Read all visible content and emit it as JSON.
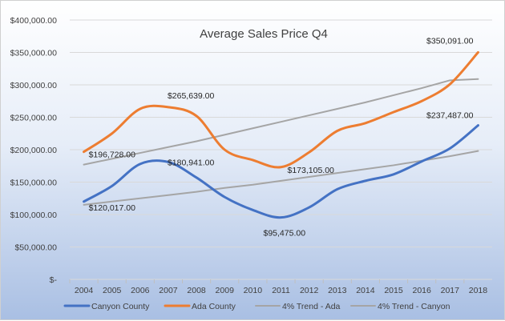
{
  "chart_data": {
    "type": "line",
    "title": "Average Sales Price Q4",
    "xlabel": "",
    "ylabel": "",
    "categories": [
      "2004",
      "2005",
      "2006",
      "2007",
      "2008",
      "2009",
      "2010",
      "2011",
      "2012",
      "2013",
      "2014",
      "2015",
      "2016",
      "2017",
      "2018"
    ],
    "ylim": [
      0,
      400000
    ],
    "y_ticks": [
      0,
      50000,
      100000,
      150000,
      200000,
      250000,
      300000,
      350000,
      400000
    ],
    "y_tick_labels": [
      "$-",
      "$50,000.00",
      "$100,000.00",
      "$150,000.00",
      "$200,000.00",
      "$250,000.00",
      "$300,000.00",
      "$350,000.00",
      "$400,000.00"
    ],
    "grid": true,
    "legend_position": "bottom",
    "series": [
      {
        "name": "Canyon County",
        "color": "#4472c4",
        "width": 3,
        "smooth": true,
        "values": [
          120017,
          144000,
          178000,
          180941,
          157000,
          127000,
          107000,
          95475,
          111000,
          139000,
          152000,
          162000,
          182000,
          202000,
          237487
        ]
      },
      {
        "name": "Ada County",
        "color": "#ed7d31",
        "width": 3,
        "smooth": true,
        "values": [
          196728,
          225000,
          263000,
          265639,
          252000,
          200000,
          184000,
          173105,
          196000,
          229000,
          241000,
          258000,
          275000,
          301000,
          350091
        ]
      },
      {
        "name": "4% Trend - Ada",
        "color": "#a5a5a5",
        "width": 2,
        "smooth": false,
        "values": [
          177000,
          186000,
          195000,
          204000,
          213000,
          223000,
          233000,
          243000,
          253000,
          263000,
          273000,
          284000,
          295000,
          307000,
          309000
        ]
      },
      {
        "name": "4% Trend - Canyon",
        "color": "#a5a5a5",
        "width": 2,
        "smooth": false,
        "values": [
          115000,
          120000,
          125000,
          130000,
          135000,
          141000,
          146000,
          152000,
          158000,
          164000,
          170000,
          176000,
          183000,
          190000,
          198000
        ]
      }
    ],
    "annotations": [
      {
        "series": 0,
        "index": 0,
        "text": "$120,017.00"
      },
      {
        "series": 0,
        "index": 3,
        "text": "$180,941.00"
      },
      {
        "series": 0,
        "index": 7,
        "text": "$95,475.00"
      },
      {
        "series": 0,
        "index": 14,
        "text": "$237,487.00"
      },
      {
        "series": 1,
        "index": 0,
        "text": "$196,728.00"
      },
      {
        "series": 1,
        "index": 3,
        "text": "$265,639.00"
      },
      {
        "series": 1,
        "index": 7,
        "text": "$173,105.00"
      },
      {
        "series": 1,
        "index": 14,
        "text": "$350,091.00"
      }
    ]
  }
}
